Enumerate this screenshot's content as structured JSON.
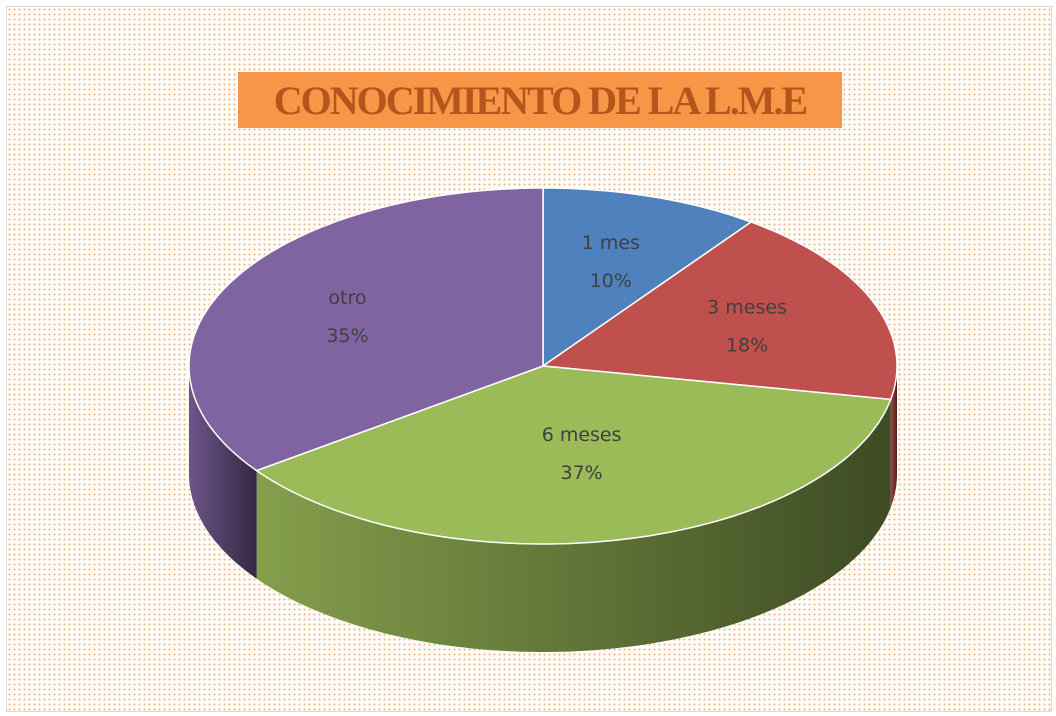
{
  "chart_data": {
    "type": "pie",
    "title": "CONOCIMIENTO DE LA L.M.E",
    "categories": [
      "1 mes",
      "3 meses",
      "6 meses",
      "otro"
    ],
    "values": [
      10,
      18,
      37,
      35
    ],
    "value_labels": [
      "10%",
      "18%",
      "37%",
      "35%"
    ],
    "colors": [
      "#4f81bd",
      "#c0504d",
      "#9bbb59",
      "#8064a2"
    ]
  }
}
